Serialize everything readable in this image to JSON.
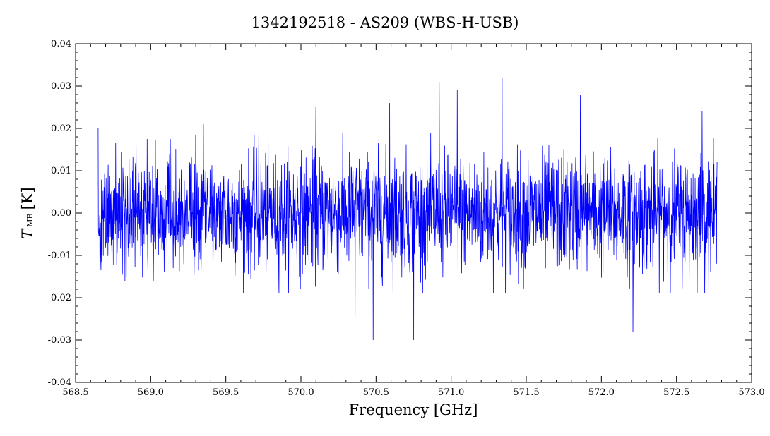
{
  "chart_data": {
    "type": "line",
    "title": "1342192518 - AS209 (WBS-H-USB)",
    "xlabel": "Frequency [GHz]",
    "ylabel_main": "T",
    "ylabel_sub": "MB",
    "ylabel_unit": "[K]",
    "xlim": [
      568.5,
      573.0
    ],
    "ylim": [
      -0.04,
      0.04
    ],
    "x_ticks": [
      "568.5",
      "569.0",
      "569.5",
      "570.0",
      "570.5",
      "571.0",
      "571.5",
      "572.0",
      "572.5",
      "573.0"
    ],
    "y_ticks": [
      "-0.04",
      "-0.03",
      "-0.02",
      "-0.01",
      "0.00",
      "0.01",
      "0.02",
      "0.03",
      "0.04"
    ],
    "grid": false,
    "line_color": "#0000ff",
    "series": [
      {
        "x_start": 568.65,
        "x_end": 572.77,
        "noise_rms": 0.0068,
        "peaks": [
          {
            "x": 568.65,
            "y": 0.02
          },
          {
            "x": 569.35,
            "y": 0.021
          },
          {
            "x": 569.72,
            "y": 0.021
          },
          {
            "x": 570.1,
            "y": 0.025
          },
          {
            "x": 570.36,
            "y": -0.024
          },
          {
            "x": 570.48,
            "y": -0.03
          },
          {
            "x": 570.59,
            "y": 0.026
          },
          {
            "x": 570.75,
            "y": -0.03
          },
          {
            "x": 570.92,
            "y": 0.031
          },
          {
            "x": 571.04,
            "y": 0.029
          },
          {
            "x": 571.34,
            "y": 0.032
          },
          {
            "x": 571.86,
            "y": 0.028
          },
          {
            "x": 572.21,
            "y": -0.028
          },
          {
            "x": 572.67,
            "y": 0.024
          }
        ]
      }
    ]
  }
}
